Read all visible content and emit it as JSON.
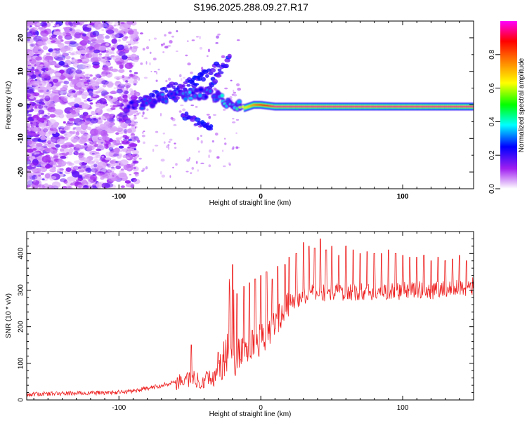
{
  "title": "S196.2025.288.09.27.R17",
  "chart_data": [
    {
      "type": "heatmap",
      "title": "S196.2025.288.09.27.R17",
      "xlabel": "Height of straight line (km)",
      "ylabel": "Frequency (Hz)",
      "xlim": [
        -165,
        150
      ],
      "ylim": [
        -25,
        25
      ],
      "xticks": [
        -100,
        0,
        100
      ],
      "xtick_labels": [
        "-100",
        "0",
        "100"
      ],
      "yticks": [
        20,
        10,
        0,
        -10,
        -20
      ],
      "ytick_labels": [
        "20",
        "10",
        "0",
        "-10",
        "-20"
      ],
      "grid": false,
      "colorbar": {
        "label": "Normalized spectral amplitude",
        "range": [
          0,
          1
        ],
        "ticks": [
          0.0,
          0.2,
          0.4,
          0.6,
          0.8
        ],
        "tick_labels": [
          "0.0",
          "0.2",
          "0.4",
          "0.6",
          "0.8"
        ],
        "colors": [
          "#ffffff",
          "#a020f0",
          "#0000ff",
          "#00ffff",
          "#00ff00",
          "#ffff00",
          "#ff8000",
          "#ff0000",
          "#ff00ff"
        ]
      },
      "features": [
        {
          "name": "diffuse scatter",
          "x_range": [
            -165,
            -95
          ],
          "freq_range": [
            -25,
            25
          ],
          "amplitude": 0.1
        },
        {
          "name": "trace segment",
          "x": [
            -95,
            -80,
            -65,
            -50,
            -40,
            -30,
            -20,
            -12,
            -5,
            0,
            10,
            150
          ],
          "freq": [
            -1.5,
            1,
            2.5,
            3,
            3.5,
            2,
            0.5,
            -1,
            0,
            0,
            -0.5,
            -0.5
          ],
          "amplitude": [
            0.2,
            0.3,
            0.3,
            0.35,
            0.3,
            0.35,
            0.4,
            0.6,
            0.75,
            0.85,
            0.95,
            0.95
          ]
        }
      ]
    },
    {
      "type": "line",
      "title": "",
      "xlabel": "Height of straight line (km)",
      "ylabel": "SNR (10 * v/v)",
      "xlim": [
        -165,
        150
      ],
      "ylim": [
        0,
        460
      ],
      "xticks": [
        -100,
        0,
        100
      ],
      "xtick_labels": [
        "-100",
        "0",
        "100"
      ],
      "yticks": [
        0,
        100,
        200,
        300,
        400
      ],
      "ytick_labels": [
        "0",
        "100",
        "200",
        "300",
        "400"
      ],
      "grid": false,
      "color": "#ee2020",
      "series": [
        {
          "name": "SNR",
          "x": [
            -165,
            -150,
            -135,
            -120,
            -105,
            -95,
            -85,
            -75,
            -65,
            -55,
            -48,
            -42,
            -38,
            -34,
            -30,
            -26,
            -22,
            -20,
            -18,
            -16,
            -12,
            -8,
            -4,
            0,
            4,
            8,
            12,
            16,
            20,
            25,
            30,
            35,
            40,
            50,
            60,
            70,
            80,
            90,
            100,
            110,
            120,
            130,
            140,
            150
          ],
          "values": [
            15,
            17,
            18,
            19,
            20,
            22,
            28,
            35,
            45,
            55,
            60,
            50,
            65,
            55,
            80,
            110,
            150,
            120,
            100,
            125,
            135,
            145,
            155,
            165,
            185,
            205,
            225,
            245,
            262,
            275,
            285,
            290,
            292,
            293,
            294,
            295,
            296,
            297,
            298,
            299,
            300,
            303,
            306,
            310
          ]
        }
      ],
      "peaks": {
        "x": [
          -49,
          -30,
          -22,
          -20,
          -17,
          -12,
          -8,
          -4,
          0,
          4,
          8,
          12,
          17,
          20,
          25,
          30,
          34,
          38,
          42,
          46,
          50,
          55,
          60,
          65,
          70,
          75,
          80,
          85,
          90,
          95,
          100,
          105,
          110,
          115,
          120,
          125,
          130,
          135,
          140,
          145
        ],
        "values": [
          150,
          130,
          330,
          370,
          290,
          310,
          320,
          330,
          340,
          350,
          330,
          365,
          370,
          390,
          400,
          430,
          420,
          415,
          440,
          410,
          420,
          395,
          420,
          410,
          400,
          405,
          400,
          400,
          410,
          400,
          395,
          390,
          390,
          395,
          380,
          390,
          380,
          385,
          395,
          380
        ]
      }
    }
  ]
}
